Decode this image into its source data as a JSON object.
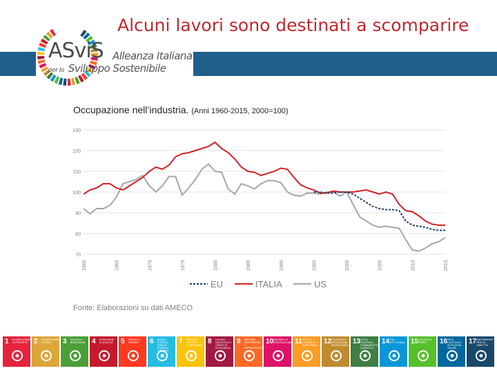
{
  "slide": {
    "title": "Alcuni lavori sono destinati a scomparire",
    "logo": {
      "word": "ASviS",
      "line1": "Alleanza Italiana",
      "line2_prefix": "per lo",
      "line2": "Sviluppo Sostenibile"
    },
    "chart_heading": "Occupazione nell’industria.",
    "chart_subheading": "(Anni 1960-2015, 2000=100)",
    "source": "Fonte: Elaborazioni su dati AMECO"
  },
  "colors": {
    "accent": "#c0272d",
    "band": "#1f5f8b",
    "eu": "#1f3f66",
    "italia": "#d42027",
    "us": "#a6a6a6"
  },
  "chart_data": {
    "type": "line",
    "title": "Occupazione nell’industria. (Anni 1960-2015, 2000=100)",
    "xlabel": "",
    "ylabel": "",
    "ylim": [
      70,
      130
    ],
    "yticks": [
      70,
      80,
      90,
      100,
      110,
      120,
      130
    ],
    "xticks": [
      1960,
      1965,
      1970,
      1975,
      1980,
      1985,
      1990,
      1995,
      2000,
      2005,
      2010,
      2015
    ],
    "grid": true,
    "legend_position": "bottom",
    "x": [
      1960,
      1961,
      1962,
      1963,
      1964,
      1965,
      1966,
      1967,
      1968,
      1969,
      1970,
      1971,
      1972,
      1973,
      1974,
      1975,
      1976,
      1977,
      1978,
      1979,
      1980,
      1981,
      1982,
      1983,
      1984,
      1985,
      1986,
      1987,
      1988,
      1989,
      1990,
      1991,
      1992,
      1993,
      1994,
      1995,
      1996,
      1997,
      1998,
      1999,
      2000,
      2001,
      2002,
      2003,
      2004,
      2005,
      2006,
      2007,
      2008,
      2009,
      2010,
      2011,
      2012,
      2013,
      2014,
      2015
    ],
    "series": [
      {
        "name": "EU",
        "style": "dashed",
        "x": [
          1995,
          1996,
          1997,
          1998,
          1999,
          2000,
          2001,
          2002,
          2003,
          2004,
          2005,
          2006,
          2007,
          2008,
          2009,
          2010,
          2011,
          2012,
          2013,
          2014,
          2015
        ],
        "values": [
          100,
          100,
          99.5,
          99.5,
          100,
          100,
          99,
          97,
          95,
          93,
          92,
          91.5,
          91.5,
          91,
          86,
          84,
          83.5,
          83,
          82,
          81.5,
          81.5
        ]
      },
      {
        "name": "ITALIA",
        "style": "solid",
        "values": [
          99,
          101,
          102,
          104,
          104,
          102,
          101,
          103,
          105,
          107,
          110,
          112,
          111,
          113,
          117,
          118.5,
          119,
          120,
          121,
          122,
          124,
          121,
          119,
          116,
          112,
          110,
          109.5,
          108,
          109,
          110,
          111.5,
          111,
          107,
          103.5,
          102,
          101,
          99.5,
          99.5,
          100.5,
          100,
          100,
          100,
          100.5,
          101,
          100,
          99,
          100,
          99,
          94,
          91,
          90.5,
          88.5,
          86,
          84.5,
          84,
          84
        ]
      },
      {
        "name": "US",
        "style": "solid",
        "values": [
          92,
          89.5,
          92,
          92,
          93.5,
          97.5,
          104,
          105,
          106,
          108,
          103,
          100,
          103,
          107.5,
          107.5,
          98.5,
          102,
          106,
          111,
          113.5,
          110,
          109.5,
          101.5,
          99,
          104,
          103,
          101.5,
          104,
          105.5,
          105.5,
          104.5,
          100,
          98.5,
          98,
          99.5,
          99.5,
          99,
          100,
          100,
          98,
          100,
          94,
          88,
          86,
          84,
          83,
          83.5,
          83,
          82.5,
          77,
          72,
          71.5,
          73,
          75,
          76,
          78
        ]
      }
    ]
  },
  "sdg": [
    {
      "n": "1",
      "label": "SCONFIGGERE LA POVERTÀ",
      "color": "#e5243b",
      "icon": "family-icon"
    },
    {
      "n": "2",
      "label": "SCONFIGGERE LA FAME",
      "color": "#dda63a",
      "icon": "bowl-icon"
    },
    {
      "n": "3",
      "label": "SALUTE E BENESSERE",
      "color": "#4c9f38",
      "icon": "heartbeat-icon"
    },
    {
      "n": "4",
      "label": "ISTRUZIONE DI QUALITÀ",
      "color": "#c5192d",
      "icon": "book-icon"
    },
    {
      "n": "5",
      "label": "PARITÀ DI GENERE",
      "color": "#ff3a21",
      "icon": "gender-icon"
    },
    {
      "n": "6",
      "label": "ACQUA PULITA E SERVIZI IGIENICO-SANITARI",
      "color": "#26bde2",
      "icon": "water-icon"
    },
    {
      "n": "7",
      "label": "ENERGIA PULITA E ACCESSIBILE",
      "color": "#fcc30b",
      "icon": "sun-icon"
    },
    {
      "n": "8",
      "label": "LAVORO DIGNITOSO E CRESCITA ECONOMICA",
      "color": "#a21942",
      "icon": "growth-icon"
    },
    {
      "n": "9",
      "label": "IMPRESE, INNOVAZIONE E INFRASTRUTTURE",
      "color": "#fd6925",
      "icon": "cubes-icon"
    },
    {
      "n": "10",
      "label": "RIDURRE LE DISUGUAGLIANZE",
      "color": "#dd1367",
      "icon": "equal-icon"
    },
    {
      "n": "11",
      "label": "CITTÀ E COMUNITÀ SOSTENIBILI",
      "color": "#fd9d24",
      "icon": "city-icon"
    },
    {
      "n": "12",
      "label": "CONSUMO E PRODUZIONE RESPONSABILI",
      "color": "#bf8b2e",
      "icon": "infinity-icon"
    },
    {
      "n": "13",
      "label": "LOTTA CONTRO IL CAMBIAMENTO CLIMATICO",
      "color": "#3f7e44",
      "icon": "eye-icon"
    },
    {
      "n": "14",
      "label": "VITA SOTT'ACQUA",
      "color": "#0a97d9",
      "icon": "fish-icon"
    },
    {
      "n": "15",
      "label": "VITA SULLA TERRA",
      "color": "#56c02b",
      "icon": "tree-icon"
    },
    {
      "n": "16",
      "label": "PACE, GIUSTIZIA E ISTITUZIONI SOLIDE",
      "color": "#00689d",
      "icon": "dove-icon"
    },
    {
      "n": "17",
      "label": "PARTNERSHIP PER GLI OBIETTIVI",
      "color": "#19486a",
      "icon": "flower-icon"
    }
  ]
}
